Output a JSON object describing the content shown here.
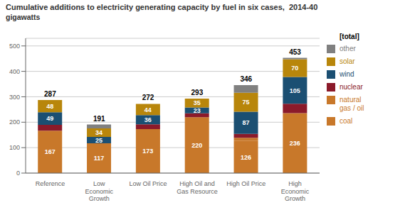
{
  "chart_data": {
    "type": "bar",
    "title": "Cumulative additions to electricity generating capacity by fuel in six cases,  2014-40",
    "subtitle": "gigawatts",
    "categories": [
      "Reference",
      "Low\nEconomic\nGrowth",
      "Low Oil Price",
      "High Oil and\nGas Resource",
      "High Oil Price",
      "High\nEconomic\nGrowth"
    ],
    "series": [
      {
        "name": "coal",
        "color": "#c8782a",
        "values": [
          167,
          117,
          173,
          220,
          126,
          236
        ],
        "data_labels": true
      },
      {
        "name": "natural\ngas / oil",
        "color": "#c8782a",
        "values": [
          0,
          0,
          0,
          0,
          13,
          0
        ]
      },
      {
        "name": "nuclear",
        "color": "#8b1a2a",
        "values": [
          23,
          0,
          19,
          15,
          15,
          37
        ]
      },
      {
        "name": "wind",
        "color": "#1b4f72",
        "values": [
          49,
          25,
          36,
          23,
          87,
          105
        ],
        "data_labels": true
      },
      {
        "name": "solar",
        "color": "#b8860b",
        "values": [
          48,
          34,
          44,
          35,
          75,
          70
        ],
        "data_labels": true
      },
      {
        "name": "other",
        "color": "#808080",
        "values": [
          0,
          15,
          0,
          0,
          30,
          5
        ]
      }
    ],
    "totals": {
      "name": "[total]",
      "values": [
        287,
        191,
        272,
        293,
        346,
        453
      ]
    },
    "ylim": [
      0,
      530
    ],
    "yticks": [
      0,
      100,
      200,
      300,
      400,
      500
    ],
    "stacked": true,
    "grid": true,
    "legend": "right"
  }
}
